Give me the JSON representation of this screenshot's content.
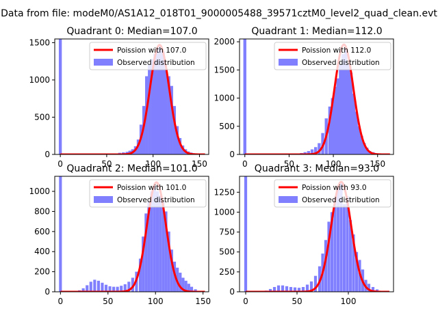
{
  "suptitle": "Data from file: modeM0/AS1A12_018T01_9000005488_39571cztM0_level2_quad_clean.evt",
  "colors": {
    "hist": "#8080ff",
    "poisson": "#ff0000",
    "frame": "#000000"
  },
  "chart_data": [
    {
      "type": "bar",
      "title": "Quadrant 0: Median=107.0",
      "median": 107.0,
      "xlim": [
        -6,
        160
      ],
      "ylim": [
        0,
        1550
      ],
      "xticks": [
        0,
        50,
        100,
        150
      ],
      "yticks": [
        0,
        500,
        1000,
        1500
      ],
      "bin_width": 3.2,
      "spike": {
        "x": 0,
        "value": 1550
      },
      "hist_x": [
        60,
        64,
        68,
        72,
        75,
        78,
        81,
        84,
        87,
        90,
        93,
        96,
        99,
        102,
        105,
        108,
        111,
        114,
        117,
        120,
        123,
        126,
        129,
        132,
        135,
        138,
        141,
        144,
        147,
        150
      ],
      "hist_values": [
        12,
        22,
        28,
        35,
        50,
        70,
        110,
        200,
        400,
        650,
        1050,
        1200,
        1280,
        1350,
        1420,
        1450,
        1380,
        1150,
        1050,
        920,
        650,
        380,
        220,
        120,
        70,
        40,
        25,
        15,
        8,
        4
      ],
      "poisson_peak": 1470,
      "legend": [
        "Poission with 107.0",
        "Observed distribution"
      ]
    },
    {
      "type": "bar",
      "title": "Quadrant 1: Median=112.0",
      "median": 112.0,
      "xlim": [
        -6,
        168
      ],
      "ylim": [
        0,
        2050
      ],
      "xticks": [
        0,
        50,
        100,
        150
      ],
      "yticks": [
        0,
        500,
        1000,
        1500,
        2000
      ],
      "bin_width": 3.4,
      "spike": {
        "x": 0,
        "value": 2050
      },
      "hist_x": [
        60,
        64,
        68,
        72,
        76,
        80,
        84,
        88,
        92,
        96,
        99,
        102,
        105,
        108,
        111,
        114,
        117,
        120,
        123,
        126,
        129,
        132,
        135,
        138,
        141,
        145,
        149,
        153,
        157
      ],
      "hist_values": [
        15,
        25,
        40,
        60,
        90,
        130,
        200,
        380,
        640,
        850,
        1000,
        1200,
        1350,
        1600,
        1780,
        1900,
        1600,
        1450,
        1080,
        760,
        500,
        330,
        200,
        120,
        60,
        40,
        20,
        10,
        5
      ],
      "poisson_peak": 1950,
      "legend": [
        "Poission with 112.0",
        "Observed distribution"
      ]
    },
    {
      "type": "bar",
      "title": "Quadrant 2: Median=101.0",
      "median": 101.0,
      "xlim": [
        -6,
        156
      ],
      "ylim": [
        0,
        1150
      ],
      "xticks": [
        0,
        50,
        100,
        150
      ],
      "yticks": [
        0,
        200,
        400,
        600,
        800,
        1000
      ],
      "bin_width": 3.0,
      "spike": {
        "x": 0,
        "value": 1150
      },
      "hist_x": [
        20,
        24,
        28,
        32,
        36,
        40,
        44,
        48,
        52,
        56,
        60,
        64,
        68,
        72,
        76,
        80,
        84,
        87,
        90,
        93,
        96,
        99,
        102,
        105,
        108,
        111,
        114,
        117,
        120,
        123,
        126,
        129,
        132,
        135,
        138,
        142,
        146
      ],
      "hist_values": [
        15,
        35,
        65,
        100,
        120,
        110,
        90,
        70,
        55,
        50,
        50,
        60,
        75,
        100,
        140,
        200,
        330,
        550,
        780,
        900,
        1000,
        1060,
        1000,
        960,
        900,
        800,
        600,
        420,
        300,
        240,
        190,
        140,
        110,
        80,
        50,
        25,
        10
      ],
      "poisson_peak": 1090,
      "legend": [
        "Poission with 101.0",
        "Observed distribution"
      ]
    },
    {
      "type": "bar",
      "title": "Quadrant 3: Median=93.0",
      "median": 93.0,
      "xlim": [
        -6,
        144
      ],
      "ylim": [
        0,
        1450
      ],
      "xticks": [
        0,
        50,
        100
      ],
      "yticks": [
        0,
        250,
        500,
        750,
        1000,
        1250
      ],
      "bin_width": 2.8,
      "spike": {
        "x": 0,
        "value": 1450
      },
      "hist_x": [
        20,
        24,
        28,
        32,
        36,
        40,
        44,
        48,
        52,
        56,
        60,
        64,
        68,
        72,
        75,
        78,
        81,
        84,
        87,
        90,
        93,
        96,
        99,
        102,
        105,
        108,
        111,
        114,
        117,
        120,
        124,
        128,
        132
      ],
      "hist_values": [
        15,
        35,
        60,
        80,
        80,
        70,
        60,
        55,
        50,
        60,
        90,
        130,
        200,
        320,
        480,
        650,
        880,
        1000,
        1180,
        1320,
        1380,
        1100,
        1200,
        900,
        720,
        500,
        400,
        280,
        150,
        100,
        60,
        30,
        12
      ],
      "poisson_peak": 1380,
      "legend": [
        "Poission with 93.0",
        "Observed distribution"
      ]
    }
  ]
}
